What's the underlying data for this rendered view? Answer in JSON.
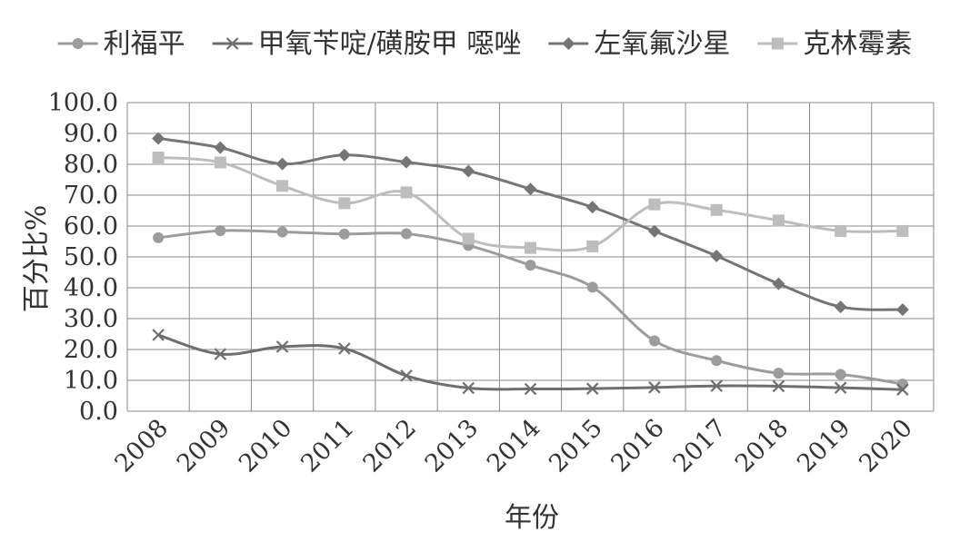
{
  "chart_data": {
    "type": "line",
    "title": "",
    "xlabel": "年份",
    "ylabel": "百分比%",
    "ylim": [
      0,
      100
    ],
    "y_tick_step": 10,
    "y_tick_decimals": 1,
    "grid": true,
    "smooth": true,
    "legend_position": "top",
    "x": [
      "2008",
      "2009",
      "2010",
      "2011",
      "2012",
      "2013",
      "2014",
      "2015",
      "2016",
      "2017",
      "2018",
      "2019",
      "2020"
    ],
    "series": [
      {
        "name": "利福平",
        "marker": "circle",
        "color": "#9c9c9c",
        "values": [
          56.2,
          58.5,
          58.1,
          57.4,
          57.5,
          53.7,
          47.3,
          40.2,
          22.8,
          16.4,
          12.3,
          11.9,
          8.8
        ]
      },
      {
        "name": "甲氧苄啶/磺胺甲 噁唑",
        "marker": "x",
        "color": "#6e6e6e",
        "values": [
          24.7,
          18.5,
          20.9,
          20.3,
          11.5,
          7.5,
          7.2,
          7.3,
          7.7,
          8.2,
          8.1,
          7.6,
          7.0
        ]
      },
      {
        "name": "左氧氟沙星",
        "marker": "diamond",
        "color": "#757575",
        "values": [
          88.4,
          85.4,
          80.1,
          83.0,
          80.7,
          77.8,
          72.0,
          66.1,
          58.3,
          50.3,
          41.3,
          33.8,
          32.9
        ]
      },
      {
        "name": "克林霉素",
        "marker": "square",
        "color": "#bdbdbd",
        "values": [
          82.2,
          80.6,
          73.0,
          67.4,
          70.9,
          55.9,
          52.9,
          53.4,
          67.0,
          65.2,
          61.8,
          58.4,
          58.4
        ]
      }
    ]
  }
}
